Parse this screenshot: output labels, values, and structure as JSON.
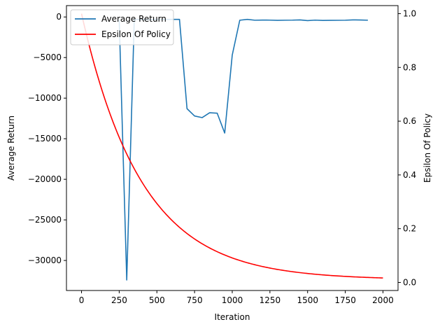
{
  "chart_data": {
    "type": "line",
    "xlabel": "Iteration",
    "ylabel_left": "Average Return",
    "ylabel_right": "Epsilon Of Policy",
    "xlim": [
      -100,
      2100
    ],
    "ylim_left": [
      -33700,
      1400
    ],
    "ylim_right": [
      -0.03,
      1.03
    ],
    "x_ticks": [
      0,
      250,
      500,
      750,
      1000,
      1250,
      1500,
      1750,
      2000
    ],
    "y_left_ticks": [
      0,
      -5000,
      -10000,
      -15000,
      -20000,
      -25000,
      -30000
    ],
    "y_right_ticks": [
      0.0,
      0.2,
      0.4,
      0.6,
      0.8,
      1.0
    ],
    "y_left_tick_labels": [
      "0",
      "−5000",
      "−10000",
      "−15000",
      "−20000",
      "−25000",
      "−30000"
    ],
    "y_right_tick_labels": [
      "0.0",
      "0.2",
      "0.4",
      "0.6",
      "0.8",
      "1.0"
    ],
    "legend_position": "upper-left",
    "grid": false,
    "series": [
      {
        "name": "Average Return",
        "axis": "left",
        "color": "#1f77b4",
        "x": [
          250,
          300,
          350,
          400,
          450,
          500,
          550,
          600,
          650,
          700,
          750,
          800,
          850,
          900,
          950,
          1000,
          1050,
          1100,
          1150,
          1200,
          1250,
          1300,
          1350,
          1400,
          1450,
          1500,
          1550,
          1600,
          1650,
          1700,
          1750,
          1800,
          1850,
          1900
        ],
        "y": [
          -300,
          -32400,
          -300,
          -300,
          -300,
          -300,
          -300,
          -300,
          -300,
          -11300,
          -12200,
          -12400,
          -11800,
          -11850,
          -14300,
          -4700,
          -400,
          -300,
          -400,
          -380,
          -390,
          -420,
          -400,
          -390,
          -360,
          -450,
          -390,
          -430,
          -420,
          -410,
          -400,
          -360,
          -370,
          -400
        ]
      },
      {
        "name": "Epsilon Of Policy",
        "axis": "right",
        "color": "#ff0000",
        "function": "0.01 + 0.99 * exp(-x / 400)",
        "x_range": [
          0,
          2000
        ]
      }
    ]
  }
}
